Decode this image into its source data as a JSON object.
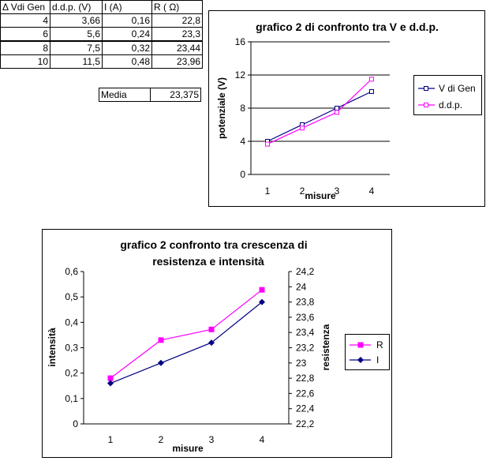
{
  "table": {
    "headers": [
      "Δ Vdi Gen",
      "d.d.p. (V)",
      "I (A)",
      "R ( Ω)"
    ],
    "rows": [
      [
        "4",
        "3,66",
        "0,16",
        "22,8"
      ],
      [
        "6",
        "5,6",
        "0,24",
        "23,3"
      ],
      [
        "8",
        "7,5",
        "0,32",
        "23,44"
      ],
      [
        "10",
        "11,5",
        "0,48",
        "23,96"
      ]
    ]
  },
  "media": {
    "label": "Media",
    "value": "23,375"
  },
  "chart_data": [
    {
      "type": "line",
      "title": "grafico 2 di confronto tra V e d.d.p.",
      "xlabel": "misure",
      "ylabel": "potenziale (V)",
      "categories": [
        "1",
        "2",
        "3",
        "4"
      ],
      "y_ticks": [
        "0",
        "4",
        "8",
        "12",
        "16"
      ],
      "ylim": [
        0,
        16
      ],
      "grid": true,
      "legend_position": "right",
      "series": [
        {
          "name": "V di Gen",
          "values": [
            4,
            6,
            8,
            10
          ],
          "color": "#000080",
          "marker": "square-hollow"
        },
        {
          "name": "d.d.p.",
          "values": [
            3.66,
            5.6,
            7.5,
            11.5
          ],
          "color": "#ff00ff",
          "marker": "square-hollow"
        }
      ]
    },
    {
      "type": "line",
      "title_lines": [
        "grafico 2 confronto tra crescenza di",
        "resistenza e intensità"
      ],
      "xlabel": "misure",
      "ylabel_left": "intensità",
      "ylabel_right": "resistenza",
      "categories": [
        "1",
        "2",
        "3",
        "4"
      ],
      "y_left_ticks": [
        "0",
        "0,1",
        "0,2",
        "0,3",
        "0,4",
        "0,5",
        "0,6"
      ],
      "y_right_ticks": [
        "22,2",
        "22,4",
        "22,6",
        "22,8",
        "23",
        "23,2",
        "23,4",
        "23,6",
        "23,8",
        "24",
        "24,2"
      ],
      "ylim_left": [
        0,
        0.6
      ],
      "ylim_right": [
        22.2,
        24.2
      ],
      "grid": false,
      "legend_position": "right",
      "series": [
        {
          "name": "R",
          "axis": "right",
          "values": [
            22.8,
            23.3,
            23.44,
            23.96
          ],
          "color": "#ff00ff",
          "marker": "square"
        },
        {
          "name": "I",
          "axis": "left",
          "values": [
            0.16,
            0.24,
            0.32,
            0.48
          ],
          "color": "#000080",
          "marker": "diamond"
        }
      ]
    }
  ]
}
